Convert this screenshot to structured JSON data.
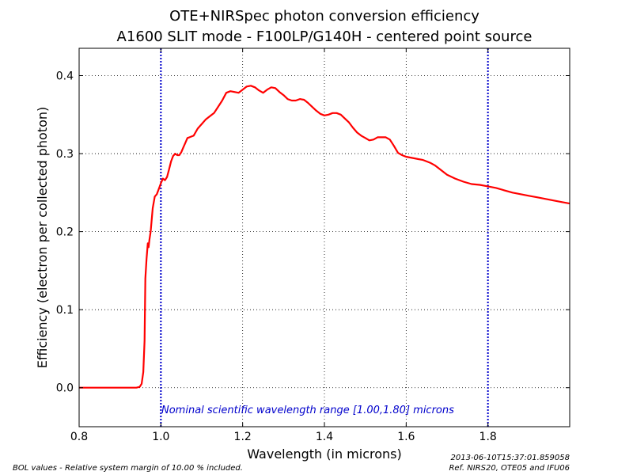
{
  "colors": {
    "curve": "#ff0000",
    "range_lines": "#0000cc",
    "annotation": "#0000cc",
    "grid": "#000000",
    "background": "#ffffff"
  },
  "chart_data": {
    "type": "line",
    "title_line1": "OTE+NIRSpec photon conversion efficiency",
    "title_line2": "A1600 SLIT mode - F100LP/G140H - centered point source",
    "xlabel": "Wavelength (in microns)",
    "ylabel": "Efficiency (electron per collected photon)",
    "xlim": [
      0.8,
      2.0
    ],
    "ylim": [
      -0.05,
      0.435
    ],
    "grid": true,
    "x_ticks": [
      0.8,
      1.0,
      1.2,
      1.4,
      1.6,
      1.8
    ],
    "x_tick_labels": [
      "0.8",
      "1.0",
      "1.2",
      "1.4",
      "1.6",
      "1.8"
    ],
    "y_ticks": [
      0.0,
      0.1,
      0.2,
      0.3,
      0.4
    ],
    "y_tick_labels": [
      "0.0",
      "0.1",
      "0.2",
      "0.3",
      "0.4"
    ],
    "series": [
      {
        "x": [
          0.8,
          0.9,
          0.94,
          0.948,
          0.953,
          0.957,
          0.96,
          0.962,
          0.965,
          0.968,
          0.97,
          0.972,
          0.975,
          0.98,
          0.985,
          0.99,
          0.995,
          1.0,
          1.005,
          1.01,
          1.015,
          1.02,
          1.025,
          1.03,
          1.035,
          1.04,
          1.045,
          1.05,
          1.055,
          1.06,
          1.065,
          1.07,
          1.075,
          1.08,
          1.09,
          1.1,
          1.11,
          1.12,
          1.13,
          1.14,
          1.15,
          1.16,
          1.17,
          1.18,
          1.19,
          1.2,
          1.21,
          1.22,
          1.23,
          1.24,
          1.25,
          1.26,
          1.27,
          1.28,
          1.29,
          1.3,
          1.31,
          1.32,
          1.33,
          1.34,
          1.35,
          1.36,
          1.37,
          1.38,
          1.39,
          1.4,
          1.41,
          1.42,
          1.43,
          1.44,
          1.45,
          1.46,
          1.47,
          1.48,
          1.49,
          1.5,
          1.51,
          1.52,
          1.53,
          1.54,
          1.55,
          1.56,
          1.57,
          1.58,
          1.59,
          1.6,
          1.61,
          1.62,
          1.63,
          1.64,
          1.65,
          1.66,
          1.67,
          1.68,
          1.7,
          1.72,
          1.74,
          1.76,
          1.78,
          1.8,
          1.82,
          1.84,
          1.86,
          1.88,
          1.9,
          1.92,
          1.94,
          1.96,
          1.98,
          2.0
        ],
        "y": [
          0.0,
          0.0,
          0.0,
          0.001,
          0.005,
          0.02,
          0.06,
          0.14,
          0.165,
          0.185,
          0.18,
          0.19,
          0.2,
          0.23,
          0.245,
          0.248,
          0.255,
          0.262,
          0.268,
          0.266,
          0.27,
          0.28,
          0.29,
          0.297,
          0.3,
          0.298,
          0.298,
          0.302,
          0.308,
          0.314,
          0.32,
          0.321,
          0.322,
          0.323,
          0.332,
          0.338,
          0.344,
          0.348,
          0.352,
          0.36,
          0.368,
          0.378,
          0.38,
          0.379,
          0.378,
          0.382,
          0.386,
          0.387,
          0.385,
          0.381,
          0.378,
          0.382,
          0.385,
          0.384,
          0.379,
          0.375,
          0.37,
          0.368,
          0.368,
          0.37,
          0.369,
          0.365,
          0.36,
          0.355,
          0.351,
          0.349,
          0.35,
          0.352,
          0.352,
          0.35,
          0.345,
          0.34,
          0.333,
          0.327,
          0.323,
          0.32,
          0.317,
          0.318,
          0.321,
          0.321,
          0.321,
          0.318,
          0.31,
          0.301,
          0.298,
          0.296,
          0.295,
          0.294,
          0.293,
          0.292,
          0.29,
          0.288,
          0.285,
          0.281,
          0.273,
          0.268,
          0.264,
          0.261,
          0.26,
          0.258,
          0.256,
          0.253,
          0.25,
          0.248,
          0.246,
          0.244,
          0.242,
          0.24,
          0.238,
          0.236
        ]
      }
    ],
    "range_lines_x": [
      1.0,
      1.8
    ],
    "annotation": "Nominal scientific wavelength range [1.00,1.80] microns"
  },
  "footer": {
    "left": "BOL values - Relative system margin of 10.00 % included.",
    "right_line1": "2013-06-10T15:37:01.859058",
    "right_line2": "Ref. NIRS20, OTE05 and IFU06"
  }
}
